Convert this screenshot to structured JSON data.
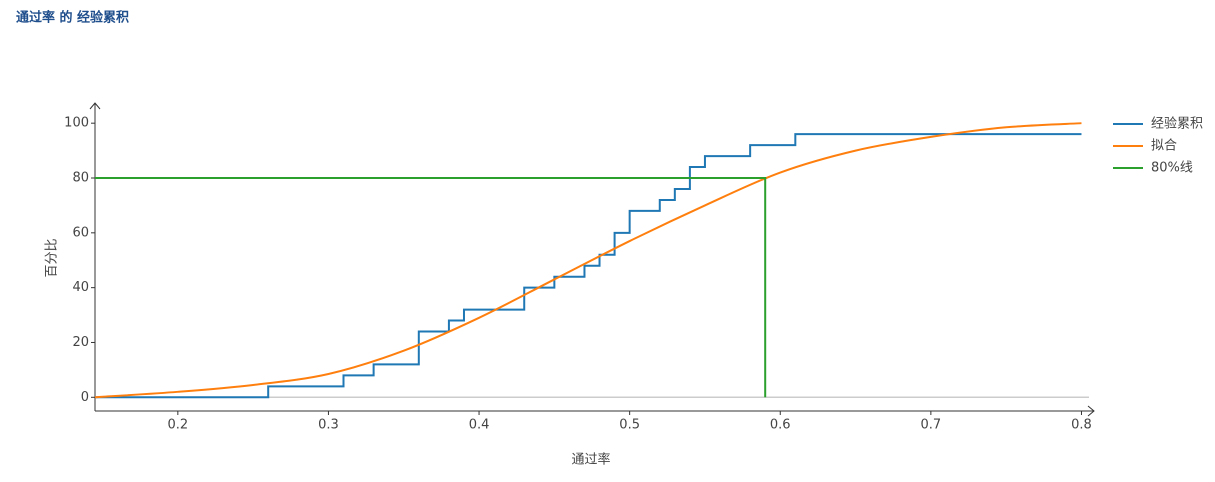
{
  "chart_data": {
    "type": "line",
    "title": "通过率 的 经验累积",
    "x_label": "通过率",
    "y_label": "百分比",
    "xlim": [
      0.145,
      0.805
    ],
    "ylim": [
      -5,
      107
    ],
    "xticks": [
      0.2,
      0.3,
      0.4,
      0.5,
      0.6,
      0.7,
      0.8
    ],
    "yticks": [
      0,
      20,
      40,
      60,
      80,
      100
    ],
    "zero_line": true,
    "legend": "right",
    "series": [
      {
        "name": "经验累积",
        "color": "#1f77b4",
        "curve": "linear",
        "x": [
          0.145,
          0.26,
          0.26,
          0.31,
          0.31,
          0.33,
          0.33,
          0.36,
          0.36,
          0.38,
          0.38,
          0.39,
          0.39,
          0.43,
          0.43,
          0.45,
          0.45,
          0.47,
          0.47,
          0.48,
          0.48,
          0.49,
          0.49,
          0.5,
          0.5,
          0.52,
          0.52,
          0.53,
          0.53,
          0.54,
          0.54,
          0.55,
          0.55,
          0.58,
          0.58,
          0.61,
          0.61,
          0.8
        ],
        "values": [
          0,
          0,
          4,
          4,
          8,
          8,
          12,
          12,
          24,
          24,
          28,
          28,
          32,
          32,
          40,
          40,
          44,
          44,
          48,
          48,
          52,
          52,
          60,
          60,
          68,
          68,
          72,
          72,
          76,
          76,
          84,
          84,
          88,
          88,
          92,
          92,
          96,
          96
        ]
      },
      {
        "name": "拟合",
        "color": "#ff7f0e",
        "curve": "smooth",
        "x": [
          0.145,
          0.2,
          0.25,
          0.3,
          0.35,
          0.4,
          0.45,
          0.5,
          0.55,
          0.6,
          0.65,
          0.7,
          0.75,
          0.8
        ],
        "values": [
          0,
          2,
          4.5,
          8.5,
          17,
          29,
          43,
          57,
          70,
          82,
          90,
          95,
          98.5,
          100
        ]
      },
      {
        "name": "80%线",
        "color": "#2ca02c",
        "curve": "linear",
        "x": [
          0.145,
          0.59,
          0.59
        ],
        "values": [
          80,
          80,
          0
        ]
      }
    ]
  }
}
